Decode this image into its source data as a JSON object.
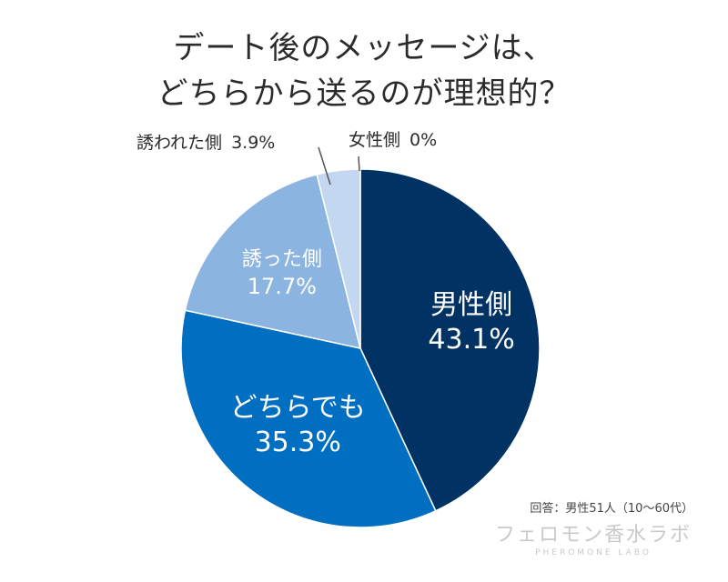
{
  "title": {
    "line1": "デート後のメッセージは、",
    "line2": "どちらから送るのが理想的？"
  },
  "chart_data": {
    "type": "pie",
    "title": "デート後のメッセージは、どちらから送るのが理想的？",
    "slices": [
      {
        "label": "男性側",
        "value": 43.1,
        "value_label": "43.1%",
        "color": "#003264",
        "label_placement": "inside"
      },
      {
        "label": "どちらでも",
        "value": 35.3,
        "value_label": "35.3%",
        "color": "#006ec1",
        "label_placement": "inside"
      },
      {
        "label": "誘った側",
        "value": 17.7,
        "value_label": "17.7%",
        "color": "#8cb4e1",
        "label_placement": "inside"
      },
      {
        "label": "誘われた側",
        "value": 3.9,
        "value_label": "3.9%",
        "color": "#c3d7f0",
        "label_placement": "outside"
      },
      {
        "label": "女性側",
        "value": 0,
        "value_label": "0%",
        "color": "#e6eef8",
        "label_placement": "outside"
      }
    ],
    "start": "top",
    "direction": "clockwise"
  },
  "footer": {
    "note": "回答：男性51人（10～60代）"
  },
  "brand": {
    "name_jp": "フェロモン香水ラボ",
    "name_en": "PHEROMONE LABO"
  }
}
